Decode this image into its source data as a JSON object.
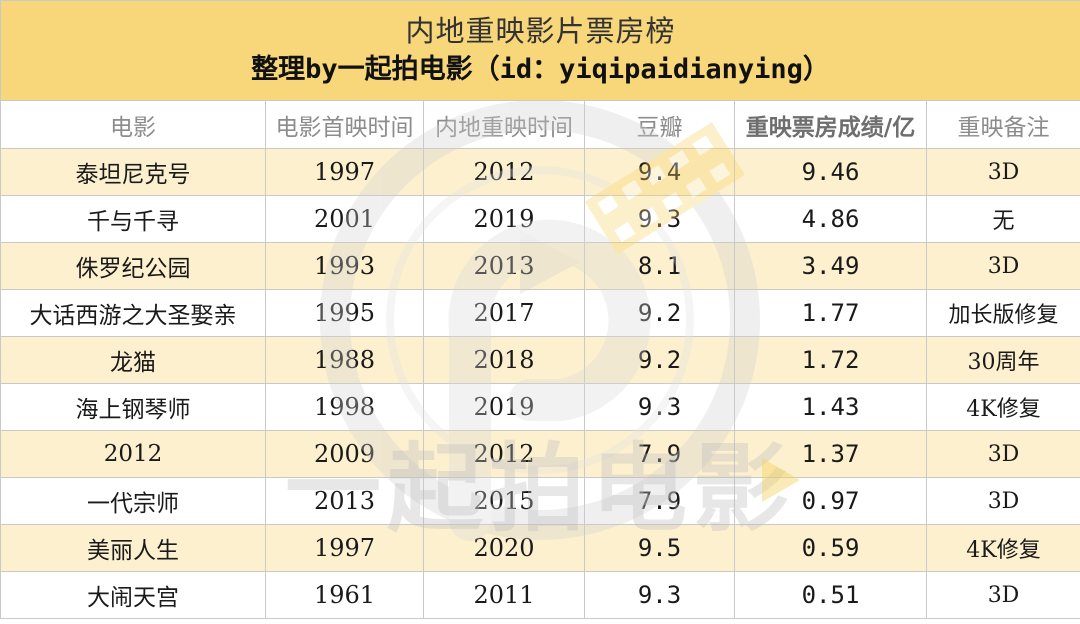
{
  "title": {
    "line1": "内地重映影片票房榜",
    "line2": "整理by一起拍电影（id：yiqipaidianying）"
  },
  "columns": [
    "电影",
    "电影首映时间",
    "内地重映时间",
    "豆瓣",
    "重映票房成绩/亿",
    "重映备注"
  ],
  "rows": [
    {
      "film": "泰坦尼克号",
      "premiere": "1997",
      "rerelease": "2012",
      "douban": "9.4",
      "boxoffice": "9.46",
      "note": "3D"
    },
    {
      "film": "千与千寻",
      "premiere": "2001",
      "rerelease": "2019",
      "douban": "9.3",
      "boxoffice": "4.86",
      "note": "无"
    },
    {
      "film": "侏罗纪公园",
      "premiere": "1993",
      "rerelease": "2013",
      "douban": "8.1",
      "boxoffice": "3.49",
      "note": "3D"
    },
    {
      "film": "大话西游之大圣娶亲",
      "premiere": "1995",
      "rerelease": "2017",
      "douban": "9.2",
      "boxoffice": "1.77",
      "note": "加长版修复"
    },
    {
      "film": "龙猫",
      "premiere": "1988",
      "rerelease": "2018",
      "douban": "9.2",
      "boxoffice": "1.72",
      "note": "30周年"
    },
    {
      "film": "海上钢琴师",
      "premiere": "1998",
      "rerelease": "2019",
      "douban": "9.3",
      "boxoffice": "1.43",
      "note": "4K修复"
    },
    {
      "film": "2012",
      "premiere": "2009",
      "rerelease": "2012",
      "douban": "7.9",
      "boxoffice": "1.37",
      "note": "3D"
    },
    {
      "film": "一代宗师",
      "premiere": "2013",
      "rerelease": "2015",
      "douban": "7.9",
      "boxoffice": "0.97",
      "note": "3D"
    },
    {
      "film": "美丽人生",
      "premiere": "1997",
      "rerelease": "2020",
      "douban": "9.5",
      "boxoffice": "0.59",
      "note": "4K修复"
    },
    {
      "film": "大闹天宫",
      "premiere": "1961",
      "rerelease": "2011",
      "douban": "9.3",
      "boxoffice": "0.51",
      "note": "3D"
    }
  ],
  "watermark": {
    "text": "一起拍电影",
    "color": "#e8c04a"
  },
  "colors": {
    "title_bg": "#f7d77a",
    "shade_row": "#fdf0cf",
    "grid_line": "#c9c9c9"
  }
}
